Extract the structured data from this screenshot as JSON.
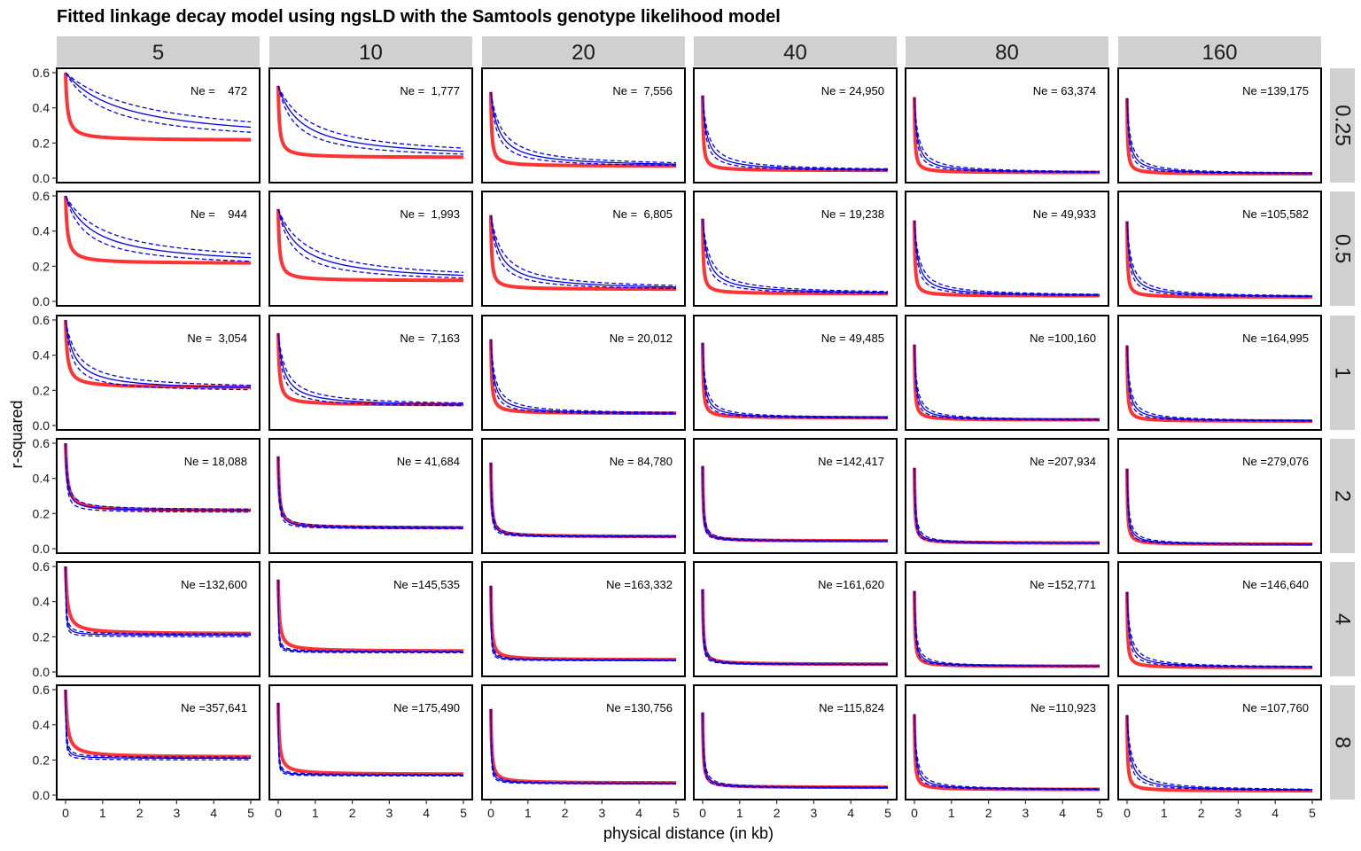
{
  "chart_data": {
    "type": "line",
    "title": "Fitted linkage decay model using ngsLD with the Samtools genotype likelihood model",
    "xlabel": "physical distance (in kb)",
    "ylabel": "r-squared",
    "xlim": [
      0,
      5
    ],
    "ylim": [
      0,
      0.6
    ],
    "x_ticks": [
      "0",
      "1",
      "2",
      "3",
      "4",
      "5"
    ],
    "y_ticks": [
      "0.0",
      "0.2",
      "0.4",
      "0.6"
    ],
    "grid": false,
    "facet_columns": [
      "5",
      "10",
      "20",
      "40",
      "80",
      "160"
    ],
    "facet_rows": [
      "0.25",
      "0.5",
      "1",
      "2",
      "4",
      "8"
    ],
    "series_styles": {
      "true_curve": {
        "color": "#ff3333",
        "style": "solid-thick"
      },
      "fitted_curve": {
        "color": "#0000ee",
        "style": "solid"
      },
      "fitted_bounds": {
        "color": "#0000ee",
        "style": "dashed"
      }
    },
    "true_curve_plateau_by_column": [
      0.215,
      0.117,
      0.068,
      0.043,
      0.031,
      0.024
    ],
    "start_value_by_column": [
      0.6,
      0.525,
      0.49,
      0.47,
      0.46,
      0.455
    ],
    "ne_labels": [
      [
        "Ne =    472",
        "Ne =  1,777",
        "Ne =  7,556",
        "Ne = 24,950",
        "Ne = 63,374",
        "Ne =139,175"
      ],
      [
        "Ne =    944",
        "Ne =  1,993",
        "Ne =  6,805",
        "Ne = 19,238",
        "Ne = 49,933",
        "Ne =105,582"
      ],
      [
        "Ne =  3,054",
        "Ne =  7,163",
        "Ne = 20,012",
        "Ne = 49,485",
        "Ne =100,160",
        "Ne =164,995"
      ],
      [
        "Ne = 18,088",
        "Ne = 41,684",
        "Ne = 84,780",
        "Ne =142,417",
        "Ne =207,934",
        "Ne =279,076"
      ],
      [
        "Ne =132,600",
        "Ne =145,535",
        "Ne =163,332",
        "Ne =161,620",
        "Ne =152,771",
        "Ne =146,640"
      ],
      [
        "Ne =357,641",
        "Ne =175,490",
        "Ne =130,756",
        "Ne =115,824",
        "Ne =110,923",
        "Ne =107,760"
      ]
    ],
    "ne_values": [
      [
        472,
        1777,
        7556,
        24950,
        63374,
        139175
      ],
      [
        944,
        1993,
        6805,
        19238,
        49933,
        105582
      ],
      [
        3054,
        7163,
        20012,
        49485,
        100160,
        164995
      ],
      [
        18088,
        41684,
        84780,
        142417,
        207934,
        279076
      ],
      [
        132600,
        145535,
        163332,
        161620,
        152771,
        146640
      ],
      [
        357641,
        175490,
        130756,
        115824,
        110923,
        107760
      ]
    ]
  }
}
